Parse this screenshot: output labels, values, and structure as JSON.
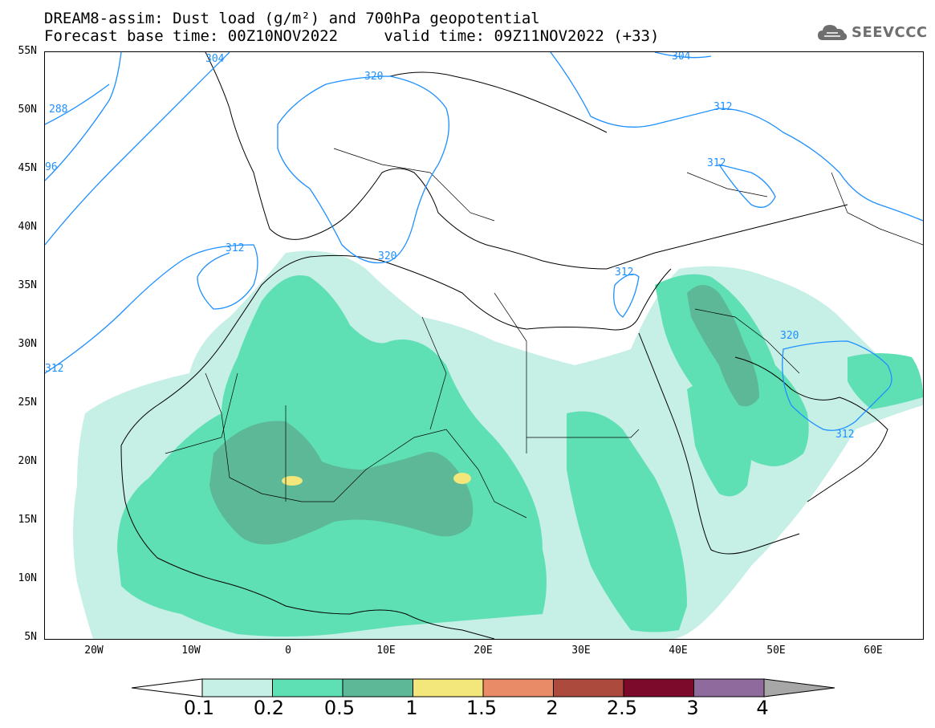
{
  "title": {
    "line1": "DREAM8-assim: Dust load (g/m²) and 700hPa geopotential",
    "line2": "Forecast base time: 00Z10NOV2022     valid time: 09Z11NOV2022 (+33)"
  },
  "logo": {
    "text": "SEEVCCC",
    "icon": "cloud-icon"
  },
  "axes": {
    "lat_labels": [
      "55N",
      "50N",
      "45N",
      "40N",
      "35N",
      "30N",
      "25N",
      "20N",
      "15N",
      "10N",
      "5N"
    ],
    "lon_labels": [
      "20W",
      "10W",
      "0",
      "10E",
      "20E",
      "30E",
      "40E",
      "50E",
      "60E"
    ],
    "lat_range": [
      5,
      55
    ],
    "lon_range": [
      -25,
      65
    ]
  },
  "contours": {
    "color": "#1e90ff",
    "labels": [
      "304",
      "312",
      "320",
      "312",
      "312",
      "312",
      "320",
      "320",
      "312",
      "288",
      "96",
      "312",
      "304"
    ]
  },
  "colorbar": {
    "ticks": [
      "0.1",
      "0.2",
      "0.5",
      "1",
      "1.5",
      "2",
      "2.5",
      "3",
      "4"
    ],
    "colors": [
      "#c6efe6",
      "#5fe0b4",
      "#5cb896",
      "#f3e67a",
      "#e88b66",
      "#ad4a3e",
      "#7c0a2a",
      "#8e6a9d",
      "#a7a7a7"
    ]
  },
  "dust_colors": {
    "light": "#c6efe6",
    "medium": "#5fe0b4",
    "dark": "#5cb896",
    "yellow": "#f3e67a"
  }
}
